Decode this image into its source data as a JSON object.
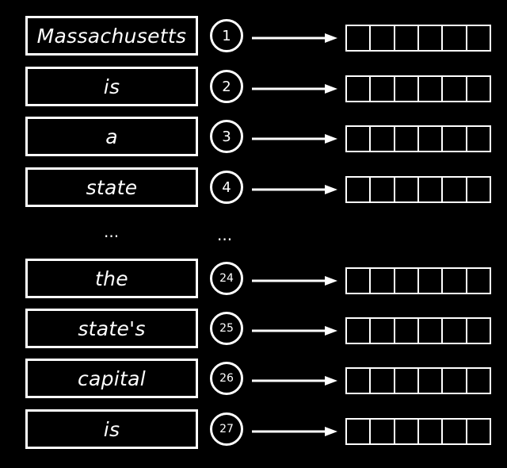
{
  "rows": [
    {
      "token": "Massachusetts",
      "position": "1"
    },
    {
      "token": "is",
      "position": "2"
    },
    {
      "token": "a",
      "position": "3"
    },
    {
      "token": "state",
      "position": "4"
    },
    {
      "token": "the",
      "position": "24"
    },
    {
      "token": "state's",
      "position": "25"
    },
    {
      "token": "capital",
      "position": "26"
    },
    {
      "token": "is",
      "position": "27"
    }
  ],
  "vector_cells": 6,
  "ellipsis": {
    "tokens": "...",
    "positions": "..."
  },
  "colors": {
    "background": "#000000",
    "foreground": "#ffffff"
  }
}
